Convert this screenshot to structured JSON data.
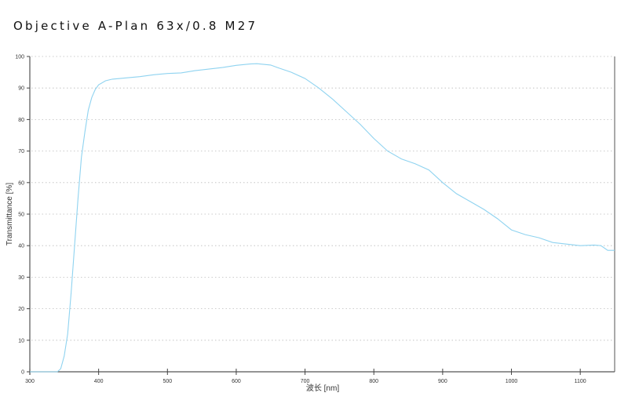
{
  "chart_data": {
    "type": "line",
    "title": "Objective A-Plan 63x/0.8 M27",
    "xlabel": "波长 [nm]",
    "ylabel": "Transmittance [%]",
    "xlim": [
      300,
      1150
    ],
    "ylim": [
      0,
      100
    ],
    "xticks": [
      300,
      400,
      500,
      600,
      700,
      800,
      900,
      1000,
      1100
    ],
    "yticks": [
      0,
      10,
      20,
      30,
      40,
      50,
      60,
      70,
      80,
      90,
      100
    ],
    "grid": "horizontal dotted",
    "line_color": "#8fd3f0",
    "series": [
      {
        "x": [
          300,
          340,
          345,
          350,
          355,
          360,
          365,
          370,
          375,
          380,
          385,
          390,
          395,
          400,
          410,
          420,
          440,
          460,
          480,
          500,
          520,
          540,
          560,
          580,
          600,
          620,
          630,
          650,
          660,
          680,
          700,
          720,
          740,
          760,
          780,
          800,
          820,
          840,
          860,
          880,
          900,
          920,
          940,
          960,
          980,
          1000,
          1020,
          1040,
          1060,
          1080,
          1100,
          1120,
          1130,
          1140,
          1150
        ],
        "y": [
          0,
          0,
          1,
          5,
          12,
          25,
          40,
          55,
          68,
          76,
          83,
          87,
          89.5,
          91,
          92.3,
          92.8,
          93.2,
          93.6,
          94.2,
          94.6,
          94.8,
          95.5,
          96,
          96.5,
          97.2,
          97.6,
          97.7,
          97.3,
          96.5,
          95,
          93,
          90,
          86.5,
          82.5,
          78.5,
          74,
          70,
          67.5,
          66,
          64,
          60,
          56.5,
          54,
          51.5,
          48.5,
          45,
          43.5,
          42.5,
          41,
          40.5,
          40,
          40.2,
          40,
          38.5,
          38.5
        ]
      }
    ]
  }
}
